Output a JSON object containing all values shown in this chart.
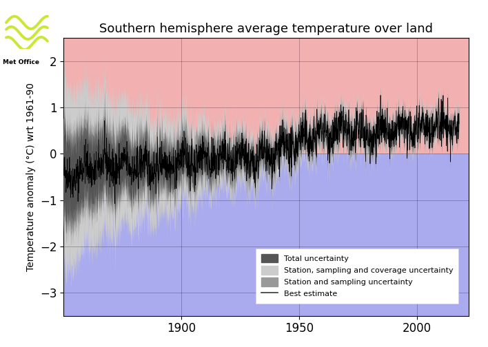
{
  "title": "Southern hemisphere average temperature over land",
  "ylabel": "Temperature anomaly (°C) wrt 1961-90",
  "xlim": [
    1850,
    2022
  ],
  "ylim": [
    -3.5,
    2.5
  ],
  "yticks": [
    -3,
    -2,
    -1,
    0,
    1,
    2
  ],
  "xticks": [
    1900,
    1950,
    2000
  ],
  "bg_color_warm": "#f2b0b0",
  "bg_color_cool": "#aaaaee",
  "grid_color": "#000000",
  "title_fontsize": 13,
  "ylabel_fontsize": 10,
  "tick_fontsize": 12,
  "legend_labels": [
    "Total uncertainty",
    "Station, sampling and coverage uncertainty",
    "Station and sampling uncertainty",
    "Best estimate"
  ],
  "color_total": "#555555",
  "color_ss_cov": "#cccccc",
  "color_ss": "#999999",
  "color_best": "#000000",
  "logo_wave_color": "#c8e832",
  "seed": 42
}
